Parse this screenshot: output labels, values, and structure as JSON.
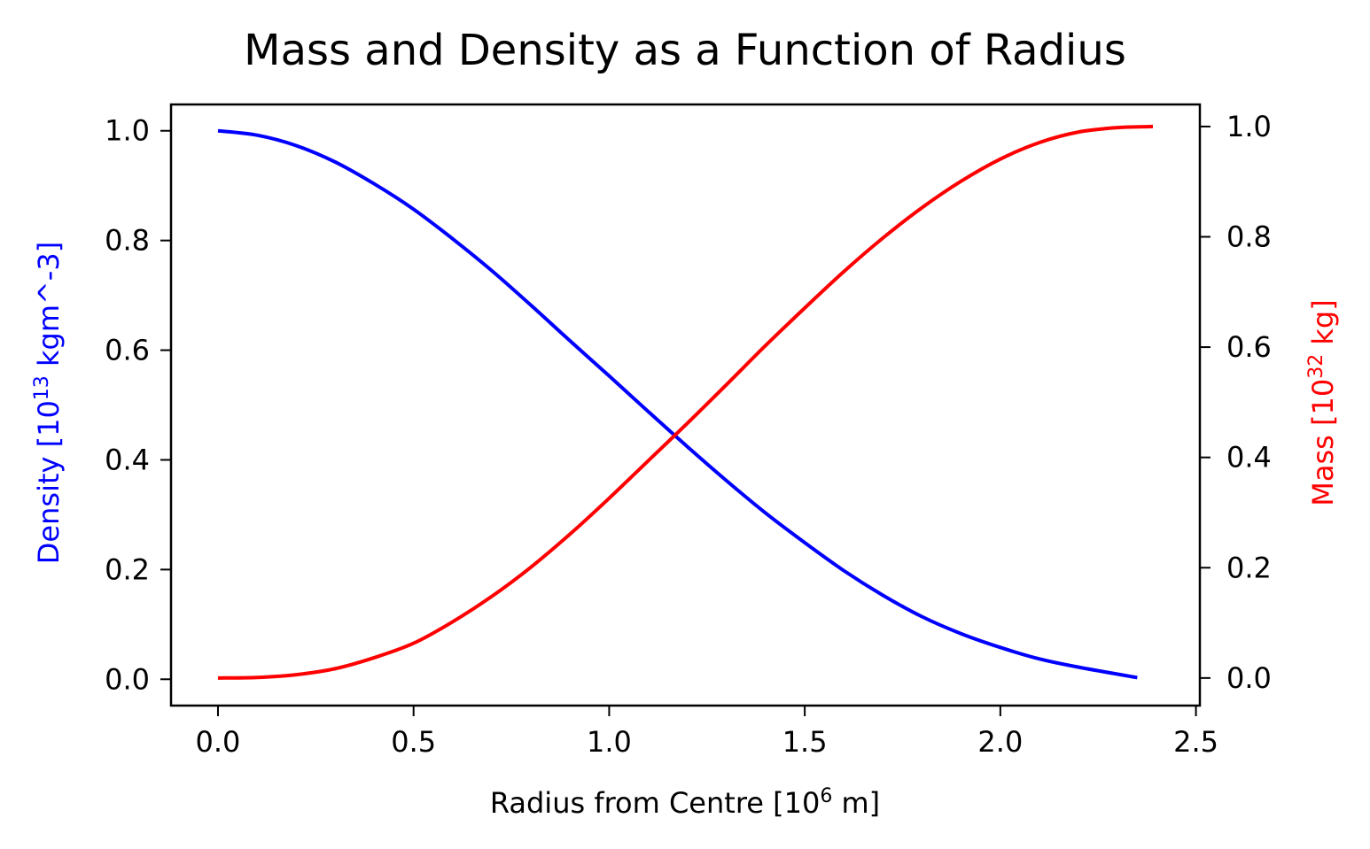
{
  "chart_data": {
    "type": "line",
    "title": "Mass and Density as a Function of Radius",
    "x_axis": {
      "label": "Radius from Centre  [10",
      "label_exp": "6",
      "label_suffix": " m]",
      "lim": [
        -0.12,
        2.51
      ],
      "ticks": [
        0.0,
        0.5,
        1.0,
        1.5,
        2.0,
        2.5
      ],
      "tick_labels": [
        "0.0",
        "0.5",
        "1.0",
        "1.5",
        "2.0",
        "2.5"
      ]
    },
    "y_axis_left": {
      "label": "Density  [10",
      "label_exp": "13",
      "label_suffix": " kgm^-3]",
      "color": "#0000ff",
      "lim": [
        -0.048,
        1.048
      ],
      "ticks": [
        0.0,
        0.2,
        0.4,
        0.6,
        0.8,
        1.0
      ],
      "tick_labels": [
        "0.0",
        "0.2",
        "0.4",
        "0.6",
        "0.8",
        "1.0"
      ]
    },
    "y_axis_right": {
      "label": "Mass  [10",
      "label_exp": "32",
      "label_suffix": " kg]",
      "color": "#ff0000",
      "lim": [
        -0.05,
        1.04
      ],
      "ticks": [
        0.0,
        0.2,
        0.4,
        0.6,
        0.8,
        1.0
      ],
      "tick_labels": [
        "0.0",
        "0.2",
        "0.4",
        "0.6",
        "0.8",
        "1.0"
      ]
    },
    "grid": false,
    "series": [
      {
        "axis": "left",
        "color": "#0000ff",
        "x": [
          0.0,
          0.1,
          0.2,
          0.3,
          0.4,
          0.5,
          0.6,
          0.7,
          0.8,
          0.9,
          1.0,
          1.1,
          1.2,
          1.3,
          1.4,
          1.5,
          1.6,
          1.7,
          1.8,
          1.9,
          2.0,
          2.1,
          2.2,
          2.35
        ],
        "y": [
          1.0,
          0.992,
          0.973,
          0.943,
          0.903,
          0.857,
          0.803,
          0.745,
          0.682,
          0.617,
          0.553,
          0.488,
          0.424,
          0.362,
          0.303,
          0.249,
          0.198,
          0.153,
          0.114,
          0.083,
          0.058,
          0.037,
          0.022,
          0.003
        ]
      },
      {
        "axis": "right",
        "color": "#ff0000",
        "x": [
          0.0,
          0.1,
          0.2,
          0.3,
          0.4,
          0.5,
          0.6,
          0.7,
          0.8,
          0.9,
          1.0,
          1.1,
          1.2,
          1.3,
          1.4,
          1.5,
          1.6,
          1.7,
          1.8,
          1.9,
          2.0,
          2.1,
          2.2,
          2.3,
          2.39
        ],
        "y": [
          0.0,
          0.001,
          0.006,
          0.017,
          0.037,
          0.063,
          0.102,
          0.148,
          0.201,
          0.261,
          0.326,
          0.394,
          0.462,
          0.532,
          0.603,
          0.671,
          0.737,
          0.798,
          0.853,
          0.901,
          0.941,
          0.971,
          0.99,
          0.998,
          1.0
        ]
      }
    ]
  }
}
